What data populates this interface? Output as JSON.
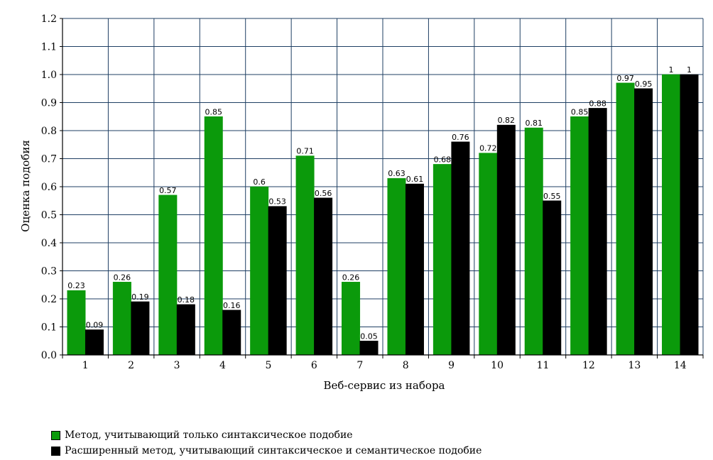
{
  "chart_data": {
    "type": "bar",
    "title": "",
    "xlabel": "Веб-сервис из набора",
    "ylabel": "Оценка подобия",
    "ylim": [
      0,
      1.2
    ],
    "yticks": [
      "0.0",
      "0.1",
      "0.2",
      "0.3",
      "0.4",
      "0.5",
      "0.6",
      "0.7",
      "0.8",
      "0.9",
      "1.0",
      "1.1",
      "1.2"
    ],
    "grid": true,
    "legend_position": "bottom-left",
    "categories": [
      "1",
      "2",
      "3",
      "4",
      "5",
      "6",
      "7",
      "8",
      "9",
      "10",
      "11",
      "12",
      "13",
      "14"
    ],
    "series": [
      {
        "name": "Метод, учитывающий только синтаксическое подобие",
        "color": "#0b9a0b",
        "values": [
          0.23,
          0.26,
          0.57,
          0.85,
          0.6,
          0.71,
          0.26,
          0.63,
          0.68,
          0.72,
          0.81,
          0.85,
          0.97,
          1
        ],
        "labels": [
          "0.23",
          "0.26",
          "0.57",
          "0.85",
          "0.6",
          "0.71",
          "0.26",
          "0.63",
          "0.68",
          "0.72",
          "0.81",
          "0.85",
          "0.97",
          "1"
        ]
      },
      {
        "name": "Расширенный метод, учитывающий синтаксическое и семантическое подобие",
        "color": "#000000",
        "values": [
          0.09,
          0.19,
          0.18,
          0.16,
          0.53,
          0.56,
          0.05,
          0.61,
          0.76,
          0.82,
          0.55,
          0.88,
          0.95,
          1
        ],
        "labels": [
          "0.09",
          "0.19",
          "0.18",
          "0.16",
          "0.53",
          "0.56",
          "0.05",
          "0.61",
          "0.76",
          "0.82",
          "0.55",
          "0.88",
          "0.95",
          "1"
        ]
      }
    ]
  },
  "colors": {
    "grid": "#1f3f63",
    "axis": "#000000"
  }
}
